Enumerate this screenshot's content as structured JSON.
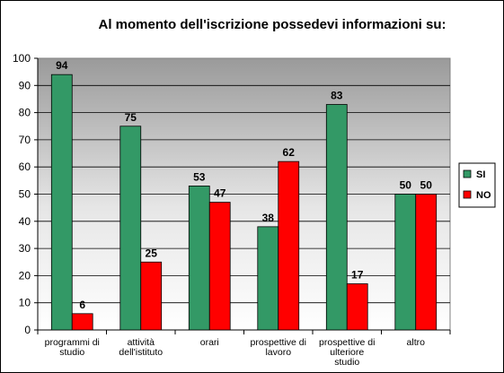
{
  "chart_data": {
    "type": "bar",
    "title": "Al momento dell'iscrizione possedevi informazioni su:",
    "categories": [
      [
        "programmi di",
        "studio"
      ],
      [
        "attività",
        "dell'istituto"
      ],
      [
        "orari"
      ],
      [
        "prospettive di",
        "lavoro"
      ],
      [
        "prospettive di",
        "ulteriore",
        "studio"
      ],
      [
        "altro"
      ]
    ],
    "series": [
      {
        "name": "SI",
        "color": "#339966",
        "values": [
          94,
          75,
          53,
          38,
          83,
          50
        ]
      },
      {
        "name": "NO",
        "color": "#ff0000",
        "values": [
          6,
          25,
          47,
          62,
          17,
          50
        ]
      }
    ],
    "yticks": [
      0,
      10,
      20,
      30,
      40,
      50,
      60,
      70,
      80,
      90,
      100
    ],
    "ylim": [
      0,
      100
    ],
    "grid": true,
    "legend_position": "right",
    "plot_background": "gradient-gray"
  }
}
